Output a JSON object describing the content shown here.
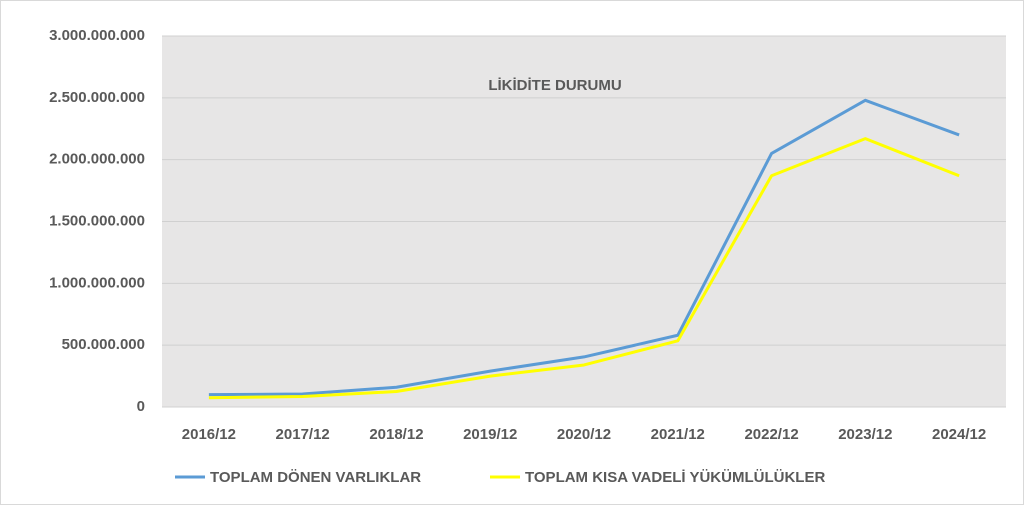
{
  "chart_data": {
    "type": "line",
    "title": "LİKİDİTE DURUMU",
    "categories": [
      "2016/12",
      "2017/12",
      "2018/12",
      "2019/12",
      "2020/12",
      "2021/12",
      "2022/12",
      "2023/12",
      "2024/12"
    ],
    "series": [
      {
        "name": "TOPLAM DÖNEN VARLIKLAR",
        "color": "#5b9bd5",
        "values": [
          100000000,
          105000000,
          160000000,
          290000000,
          405000000,
          580000000,
          2050000000,
          2480000000,
          2200000000
        ]
      },
      {
        "name": "TOPLAM KISA VADELİ YÜKÜMLÜLÜKLER",
        "color": "#ffff00",
        "values": [
          75000000,
          85000000,
          125000000,
          250000000,
          340000000,
          535000000,
          1870000000,
          2170000000,
          1870000000
        ]
      }
    ],
    "ylim": [
      0,
      3000000000
    ],
    "yticks": [
      0,
      {
        "value": 500000000,
        "label": "500.000.000"
      },
      {
        "value": 1000000000,
        "label": "1.000.000.000"
      },
      {
        "value": 1500000000,
        "label": "1.500.000.000"
      },
      {
        "value": 2000000000,
        "label": "2.000.000.000"
      },
      {
        "value": 2500000000,
        "label": "2.500.000.000"
      },
      {
        "value": 3000000000,
        "label": "3.000.000.000"
      }
    ],
    "grid": true,
    "legend": "bottom"
  }
}
